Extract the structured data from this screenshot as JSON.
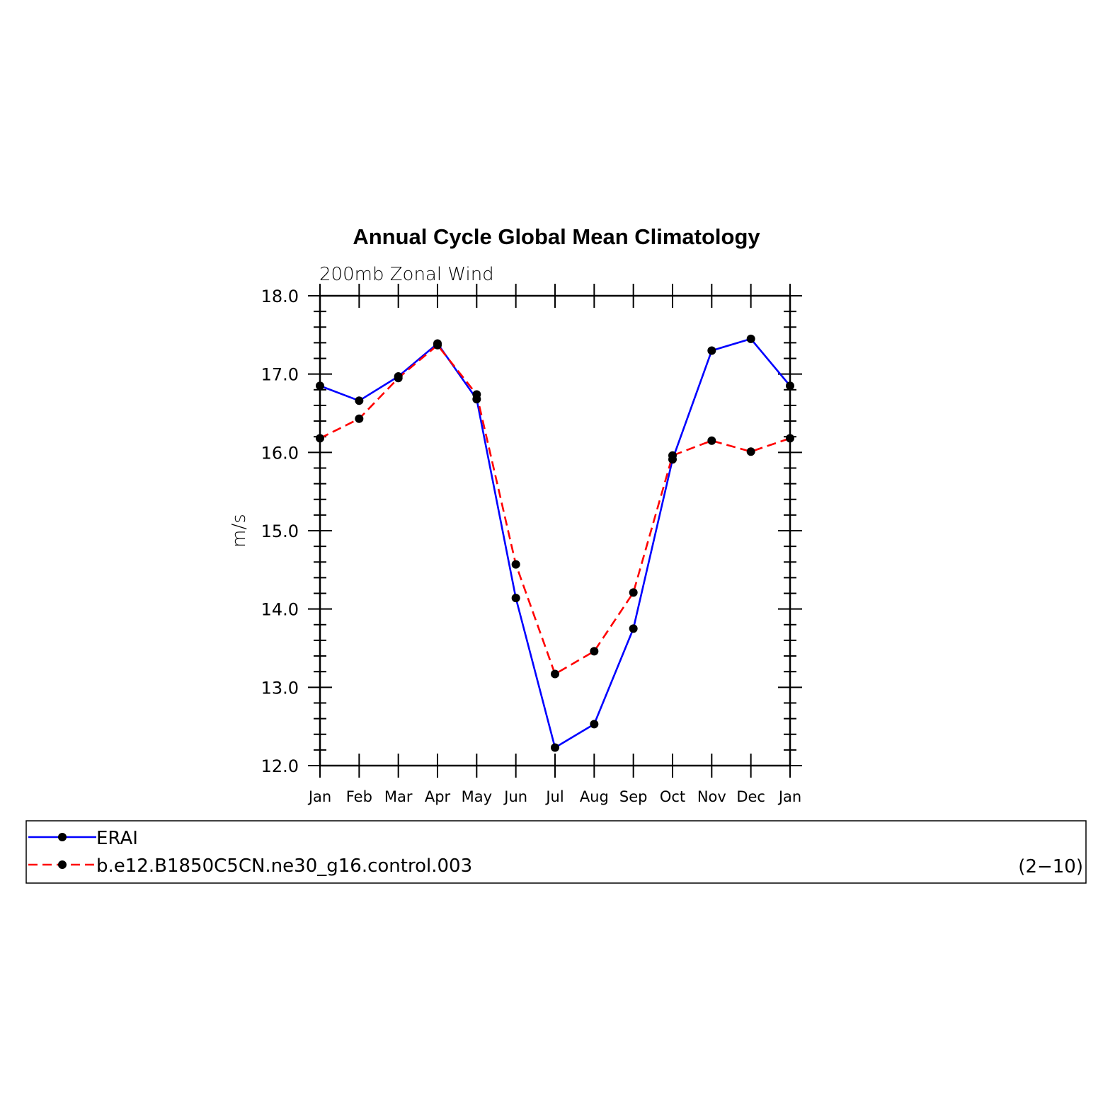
{
  "chart_data": {
    "type": "line",
    "title": "Annual Cycle Global Mean Climatology",
    "subtitle": "200mb Zonal Wind",
    "ylabel": "m/s",
    "ylim": [
      12.0,
      18.0
    ],
    "yticks": [
      "12.0",
      "13.0",
      "14.0",
      "15.0",
      "16.0",
      "17.0",
      "18.0"
    ],
    "categories": [
      "Jan",
      "Feb",
      "Mar",
      "Apr",
      "May",
      "Jun",
      "Jul",
      "Aug",
      "Sep",
      "Oct",
      "Nov",
      "Dec",
      "Jan"
    ],
    "series": [
      {
        "name": "ERAI",
        "color": "#0000ff",
        "dash": "solid",
        "values": [
          16.85,
          16.66,
          16.97,
          17.39,
          16.68,
          14.14,
          12.23,
          12.53,
          13.75,
          15.91,
          17.3,
          17.45,
          16.85
        ]
      },
      {
        "name": "b.e12.B1850C5CN.ne30_g16.control.003",
        "color": "#ff0000",
        "dash": "dashed",
        "values": [
          16.18,
          16.43,
          16.95,
          17.37,
          16.74,
          14.57,
          13.17,
          13.46,
          14.21,
          15.96,
          16.15,
          16.01,
          16.18
        ]
      }
    ],
    "grid": false,
    "legend_position": "bottom",
    "annotation": "(2−10)"
  }
}
